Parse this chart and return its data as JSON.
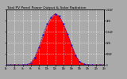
{
  "title": "Total PV Panel Power Output & Solar Radiation",
  "bg_color": "#aaaaaa",
  "plot_bg_color": "#aaaaaa",
  "grid_color": "#ffffff",
  "red_fill_color": "#ff0000",
  "blue_line_color": "#0000dd",
  "x_points": [
    0,
    1,
    2,
    3,
    4,
    5,
    6,
    7,
    8,
    9,
    10,
    11,
    12,
    13,
    14,
    15,
    16,
    17,
    18,
    19,
    20,
    21,
    22,
    23,
    24
  ],
  "pv_power": [
    0,
    0,
    0,
    0,
    0,
    0.01,
    0.08,
    0.35,
    0.78,
    1.28,
    1.78,
    2.12,
    2.32,
    2.18,
    1.82,
    1.38,
    0.88,
    0.42,
    0.13,
    0.04,
    0.005,
    0,
    0,
    0,
    0
  ],
  "solar_rad": [
    0,
    0,
    0,
    0,
    0,
    0.005,
    0.04,
    0.16,
    0.4,
    0.68,
    0.92,
    1.08,
    1.15,
    1.1,
    0.92,
    0.7,
    0.44,
    0.21,
    0.07,
    0.016,
    0.002,
    0,
    0,
    0,
    0
  ],
  "solar_scale": 2.0,
  "ylim": [
    0,
    2.5
  ],
  "xlim": [
    0,
    24
  ],
  "right_axis_labels": [
    "0",
    "500W",
    "1kW",
    "1.5kW",
    "2kW",
    "2.5kW"
  ],
  "right_axis_ticks": [
    0,
    0.5,
    1.0,
    1.5,
    2.0,
    2.5
  ],
  "x_tick_labels": [
    "0h",
    "2h",
    "4h",
    "6h",
    "8h",
    "10h",
    "12h",
    "14h",
    "16h",
    "18h",
    "20h",
    "22h",
    "24h"
  ],
  "x_ticks": [
    0,
    2,
    4,
    6,
    8,
    10,
    12,
    14,
    16,
    18,
    20,
    22,
    24
  ],
  "title_fontsize": 3.2,
  "tick_fontsize": 2.0
}
